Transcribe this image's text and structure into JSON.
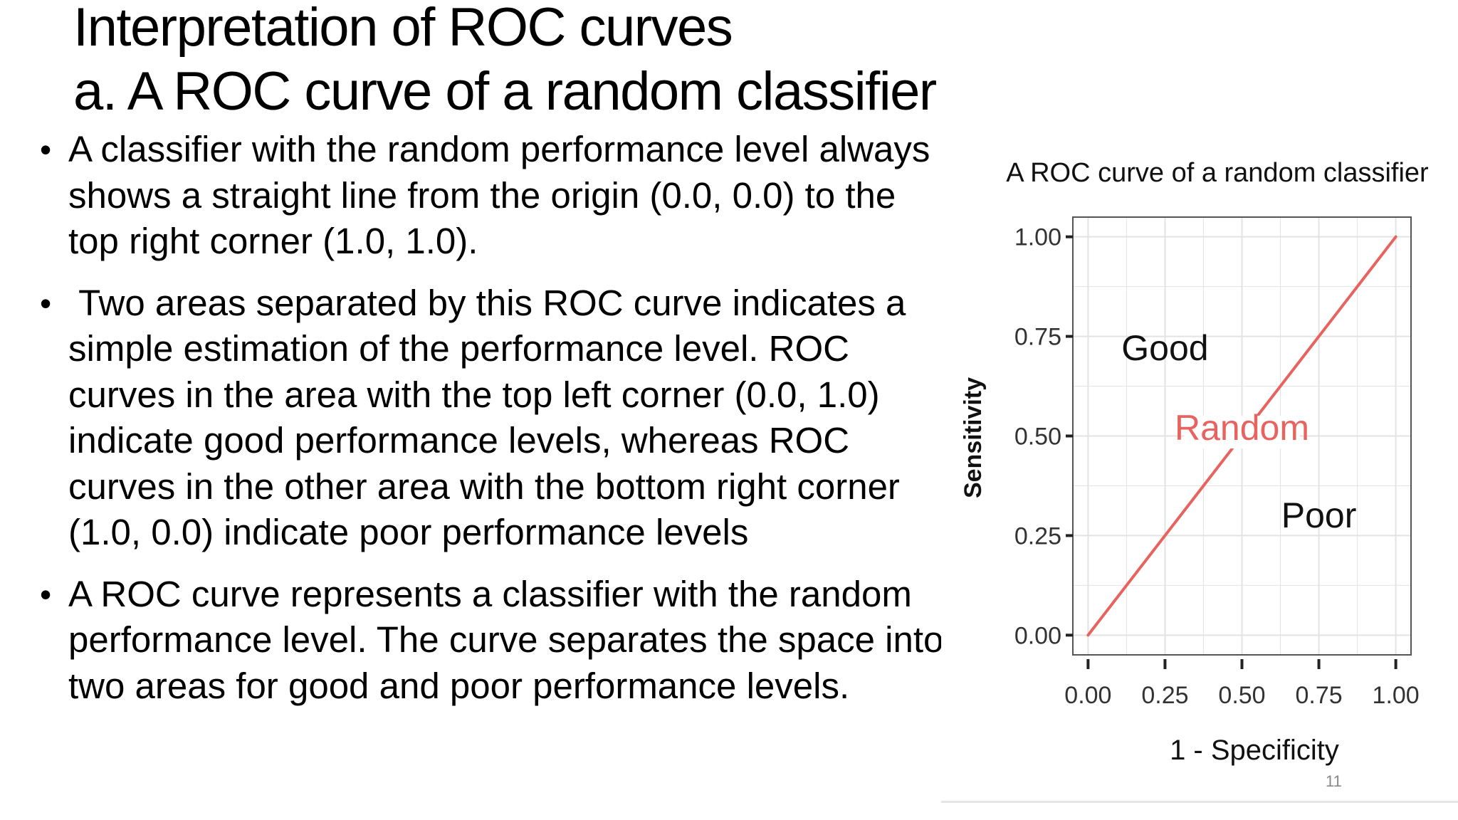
{
  "slide": {
    "title_line1": "Interpretation of ROC curves",
    "title_line2": "a. A ROC curve of a random classifier",
    "bullets": [
      "A classifier with the random performance level always shows a straight line from the origin (0.0, 0.0) to the top right corner (1.0, 1.0).",
      " Two areas separated by this ROC curve indicates a simple estimation of the performance level. ROC curves in the area with the top left corner (0.0, 1.0) indicate good performance levels, whereas ROC curves in the other area with the bottom right corner (1.0, 0.0) indicate poor performance levels",
      "A ROC curve represents a classifier with the random performance level. The curve separates the space into two areas for good and poor performance levels."
    ],
    "bullet_glyph": "•",
    "page_number": "11"
  },
  "chart_data": {
    "type": "line",
    "title": "A ROC curve of a random classifier",
    "xlabel": "1 - Specificity",
    "ylabel": "Sensitivity",
    "xlim": [
      0,
      1
    ],
    "ylim": [
      0,
      1
    ],
    "x_ticks": [
      0,
      0.25,
      0.5,
      0.75,
      1.0
    ],
    "y_ticks": [
      0,
      0.25,
      0.5,
      0.75,
      1.0
    ],
    "x_tick_labels": [
      "0.00",
      "0.25",
      "0.50",
      "0.75",
      "1.00"
    ],
    "y_tick_labels": [
      "0.00",
      "0.25",
      "0.50",
      "0.75",
      "1.00"
    ],
    "grid": true,
    "series": [
      {
        "x": [
          0,
          1
        ],
        "y": [
          0,
          1
        ],
        "color": "#e8625f"
      }
    ],
    "annotations": [
      {
        "text": "Good",
        "x": 0.25,
        "y": 0.69,
        "color": "#111111"
      },
      {
        "text": "Random",
        "x": 0.5,
        "y": 0.49,
        "color": "#e8625f"
      },
      {
        "text": "Poor",
        "x": 0.75,
        "y": 0.27,
        "color": "#111111"
      }
    ],
    "colors": {
      "line": "#e8625f",
      "grid": "#e3e3e3",
      "frame": "#555555"
    }
  }
}
